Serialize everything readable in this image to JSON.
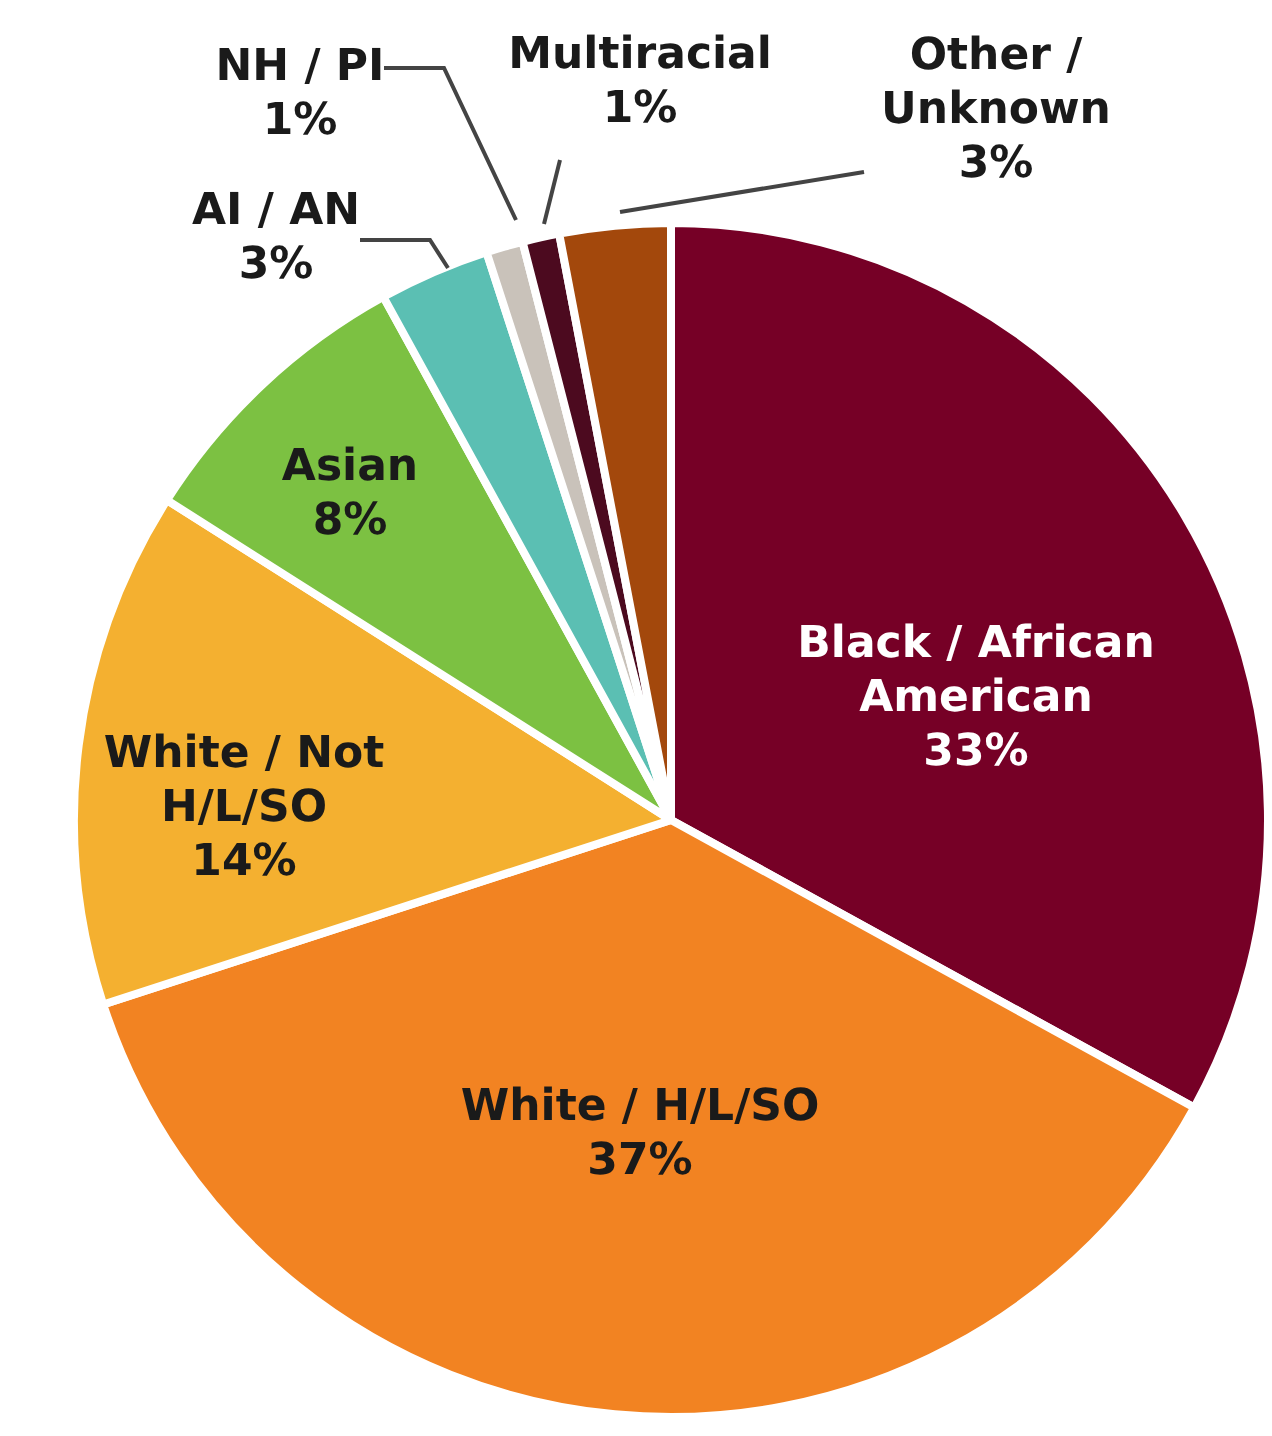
{
  "chart_data": {
    "type": "pie",
    "categories": [
      "Black / African American",
      "White / H/L/SO",
      "White / Not H/L/SO",
      "Asian",
      "AI / AN",
      "NH / PI",
      "Multiracial",
      "Other / Unknown"
    ],
    "values": [
      33,
      37,
      14,
      8,
      3,
      1,
      1,
      3
    ],
    "value_labels": [
      "33%",
      "37%",
      "14%",
      "8%",
      "3%",
      "1%",
      "1%",
      "3%"
    ],
    "colors": [
      "#760026",
      "#f28322",
      "#f4b030",
      "#7cc142",
      "#5bbfb3",
      "#c9c2ba",
      "#4c0a1f",
      "#a3480c"
    ],
    "legend": false
  }
}
